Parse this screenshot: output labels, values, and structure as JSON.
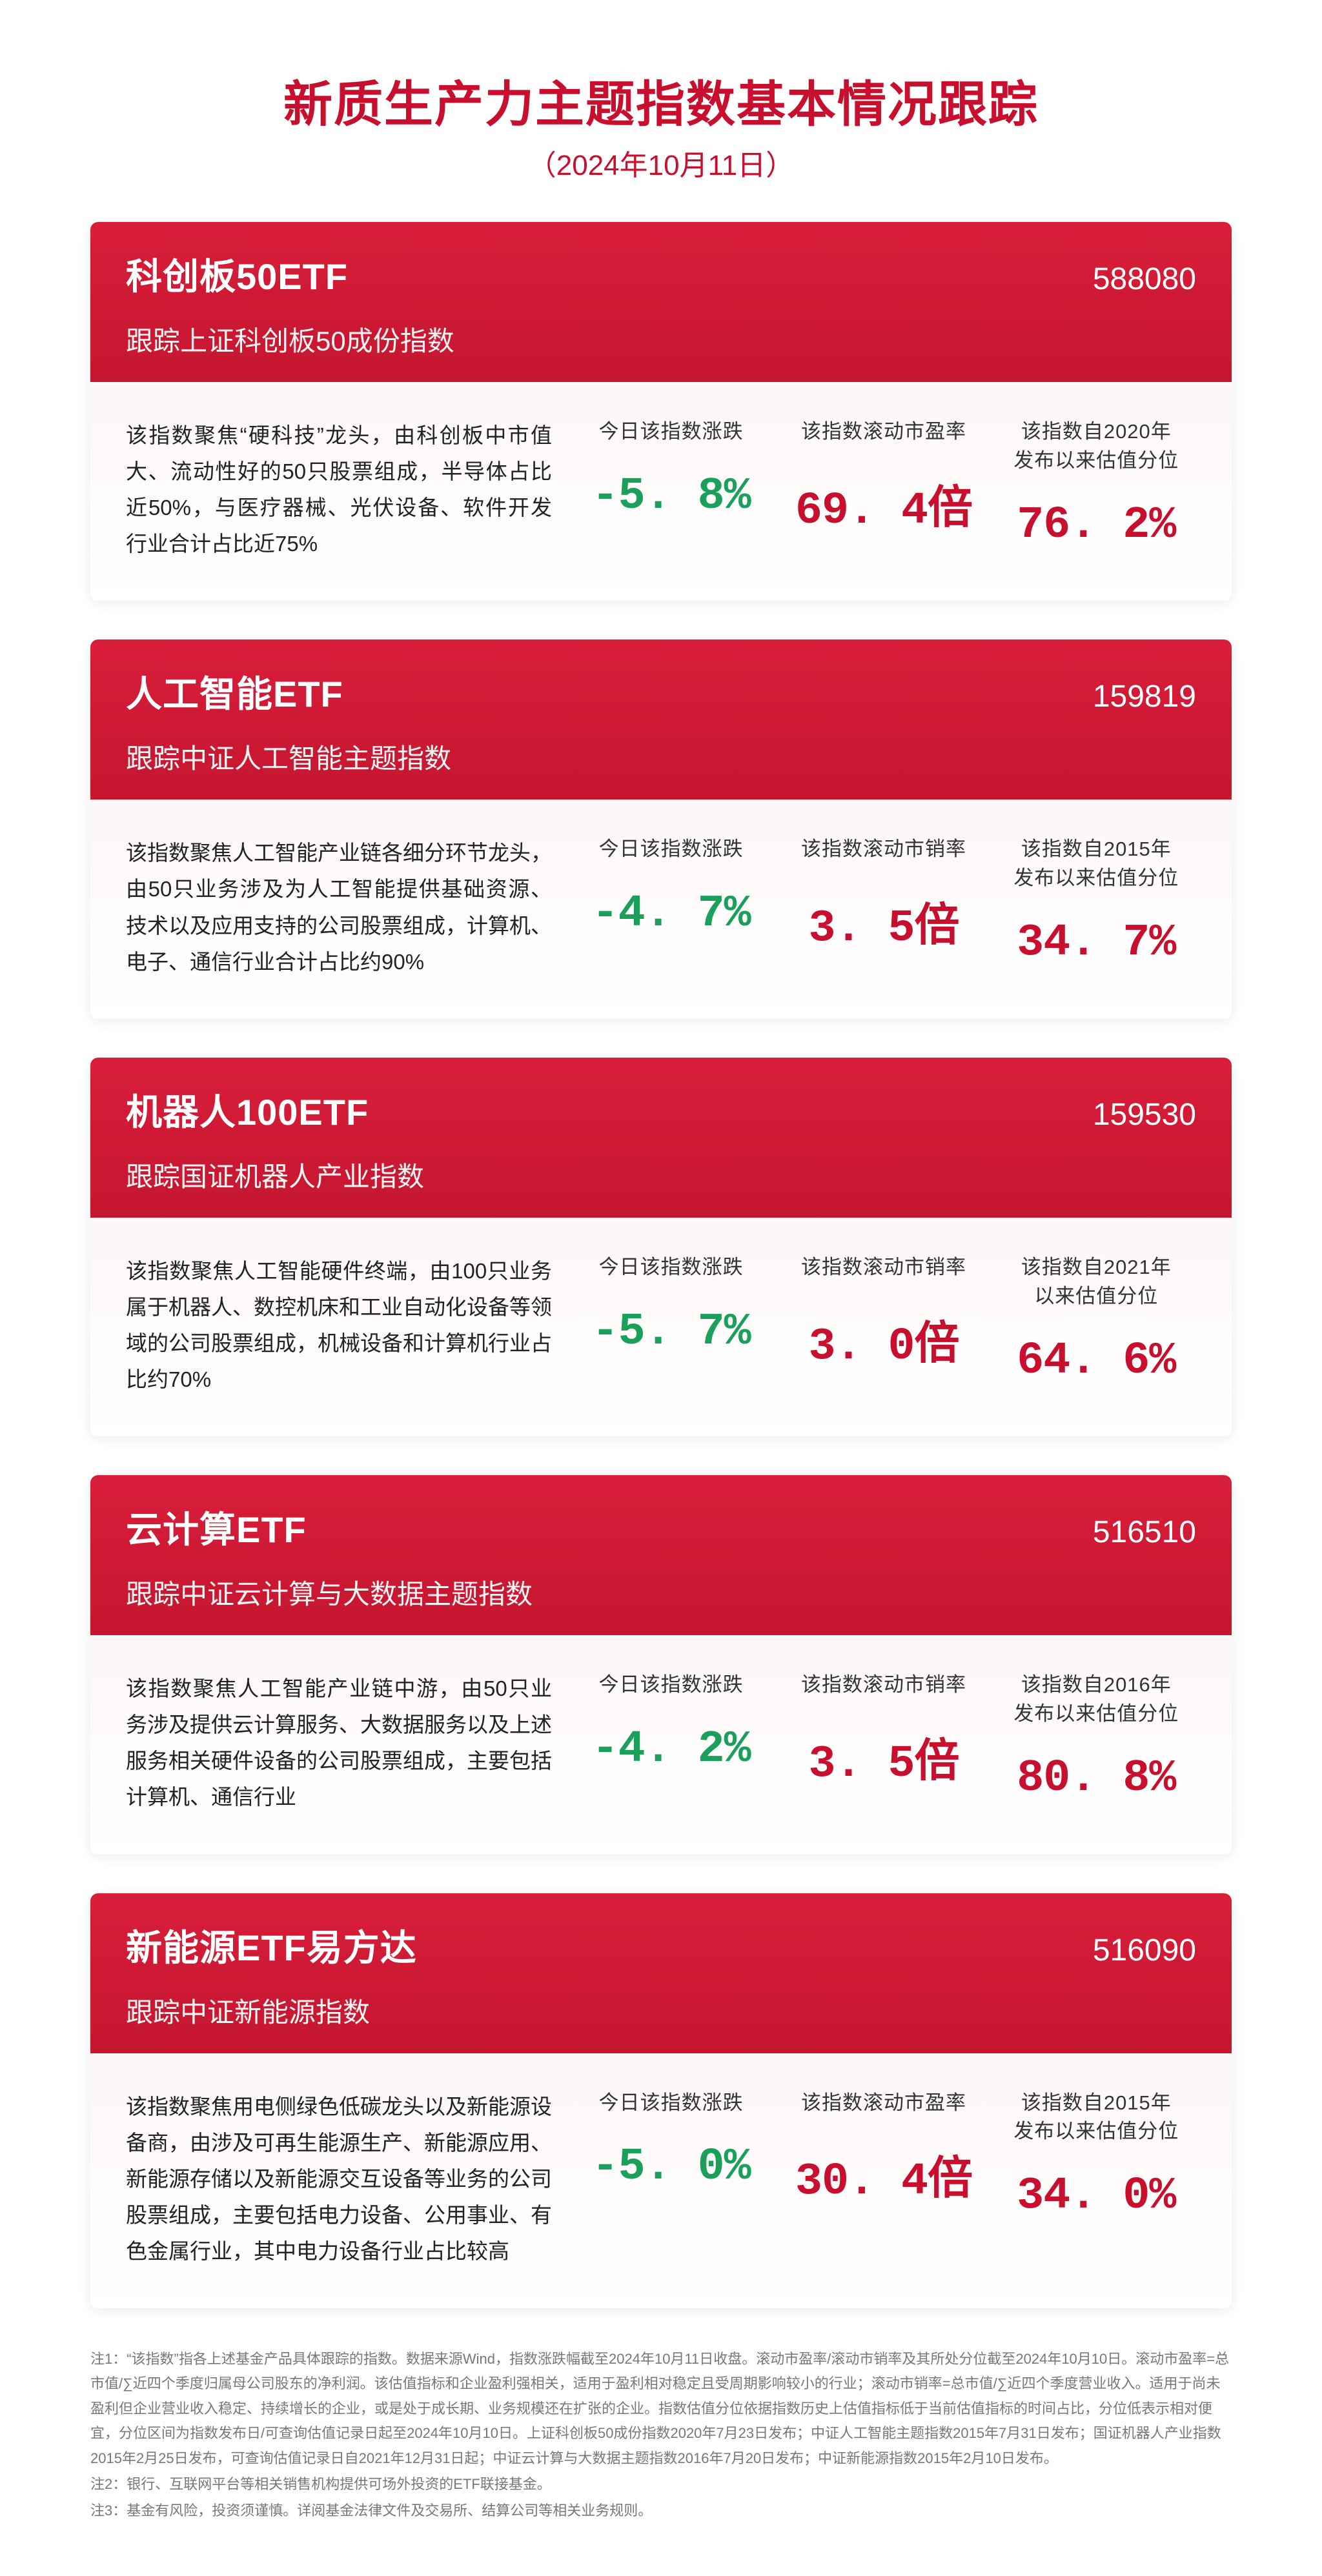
{
  "header": {
    "title": "新质生产力主题指数基本情况跟踪",
    "date": "（2024年10月11日）"
  },
  "cards": [
    {
      "name": "科创板50ETF",
      "code": "588080",
      "track": "跟踪上证科创板50成份指数",
      "desc": "该指数聚焦“硬科技”龙头，由科创板中市值大、流动性好的50只股票组成，半导体占比近50%，与医疗器械、光伏设备、软件开发行业合计占比近75%",
      "metrics": [
        {
          "label": "今日该指数涨跌",
          "value": "-5. 8%",
          "color": "val-green"
        },
        {
          "label": "该指数滚动市盈率",
          "value": "69. 4倍",
          "color": "val-red"
        },
        {
          "label": "该指数自2020年\n发布以来估值分位",
          "value": "76. 2%",
          "color": "val-red"
        }
      ]
    },
    {
      "name": "人工智能ETF",
      "code": "159819",
      "track": "跟踪中证人工智能主题指数",
      "desc": "该指数聚焦人工智能产业链各细分环节龙头，由50只业务涉及为人工智能提供基础资源、技术以及应用支持的公司股票组成，计算机、电子、通信行业合计占比约90%",
      "metrics": [
        {
          "label": "今日该指数涨跌",
          "value": "-4. 7%",
          "color": "val-green"
        },
        {
          "label": "该指数滚动市销率",
          "value": "3. 5倍",
          "color": "val-red"
        },
        {
          "label": "该指数自2015年\n发布以来估值分位",
          "value": "34. 7%",
          "color": "val-red"
        }
      ]
    },
    {
      "name": "机器人100ETF",
      "code": "159530",
      "track": "跟踪国证机器人产业指数",
      "desc": "该指数聚焦人工智能硬件终端，由100只业务属于机器人、数控机床和工业自动化设备等领域的公司股票组成，机械设备和计算机行业占比约70%",
      "metrics": [
        {
          "label": "今日该指数涨跌",
          "value": "-5. 7%",
          "color": "val-green"
        },
        {
          "label": "该指数滚动市销率",
          "value": "3. 0倍",
          "color": "val-red"
        },
        {
          "label": "该指数自2021年\n以来估值分位",
          "value": "64. 6%",
          "color": "val-red"
        }
      ]
    },
    {
      "name": "云计算ETF",
      "code": "516510",
      "track": "跟踪中证云计算与大数据主题指数",
      "desc": "该指数聚焦人工智能产业链中游，由50只业务涉及提供云计算服务、大数据服务以及上述服务相关硬件设备的公司股票组成，主要包括计算机、通信行业",
      "metrics": [
        {
          "label": "今日该指数涨跌",
          "value": "-4. 2%",
          "color": "val-green"
        },
        {
          "label": "该指数滚动市销率",
          "value": "3. 5倍",
          "color": "val-red"
        },
        {
          "label": "该指数自2016年\n发布以来估值分位",
          "value": "80. 8%",
          "color": "val-red"
        }
      ]
    },
    {
      "name": "新能源ETF易方达",
      "code": "516090",
      "track": "跟踪中证新能源指数",
      "desc": "该指数聚焦用电侧绿色低碳龙头以及新能源设备商，由涉及可再生能源生产、新能源应用、新能源存储以及新能源交互设备等业务的公司股票组成，主要包括电力设备、公用事业、有色金属行业，其中电力设备行业占比较高",
      "metrics": [
        {
          "label": "今日该指数涨跌",
          "value": "-5. 0%",
          "color": "val-green"
        },
        {
          "label": "该指数滚动市盈率",
          "value": "30. 4倍",
          "color": "val-red"
        },
        {
          "label": "该指数自2015年\n发布以来估值分位",
          "value": "34. 0%",
          "color": "val-red"
        }
      ]
    }
  ],
  "footnotes": [
    "注1：“该指数”指各上述基金产品具体跟踪的指数。数据来源Wind，指数涨跌幅截至2024年10月11日收盘。滚动市盈率/滚动市销率及其所处分位截至2024年10月10日。滚动市盈率=总市值/∑近四个季度归属母公司股东的净利润。该估值指标和企业盈利强相关，适用于盈利相对稳定且受周期影响较小的行业；滚动市销率=总市值/∑近四个季度营业收入。适用于尚未盈利但企业营业收入稳定、持续增长的企业，或是处于成长期、业务规模还在扩张的企业。指数估值分位依据指数历史上估值指标低于当前估值指标的时间占比，分位低表示相对便宜，分位区间为指数发布日/可查询估值记录日起至2024年10月10日。上证科创板50成份指数2020年7月23日发布；中证人工智能主题指数2015年7月31日发布；国证机器人产业指数2015年2月25日发布，可查询估值记录日自2021年12月31日起；中证云计算与大数据主题指数2016年7月20日发布；中证新能源指数2015年2月10日发布。",
    "注2：银行、互联网平台等相关销售机构提供可场外投资的ETF联接基金。",
    "注3：基金有风险，投资须谨慎。详阅基金法律文件及交易所、结算公司等相关业务规则。"
  ]
}
